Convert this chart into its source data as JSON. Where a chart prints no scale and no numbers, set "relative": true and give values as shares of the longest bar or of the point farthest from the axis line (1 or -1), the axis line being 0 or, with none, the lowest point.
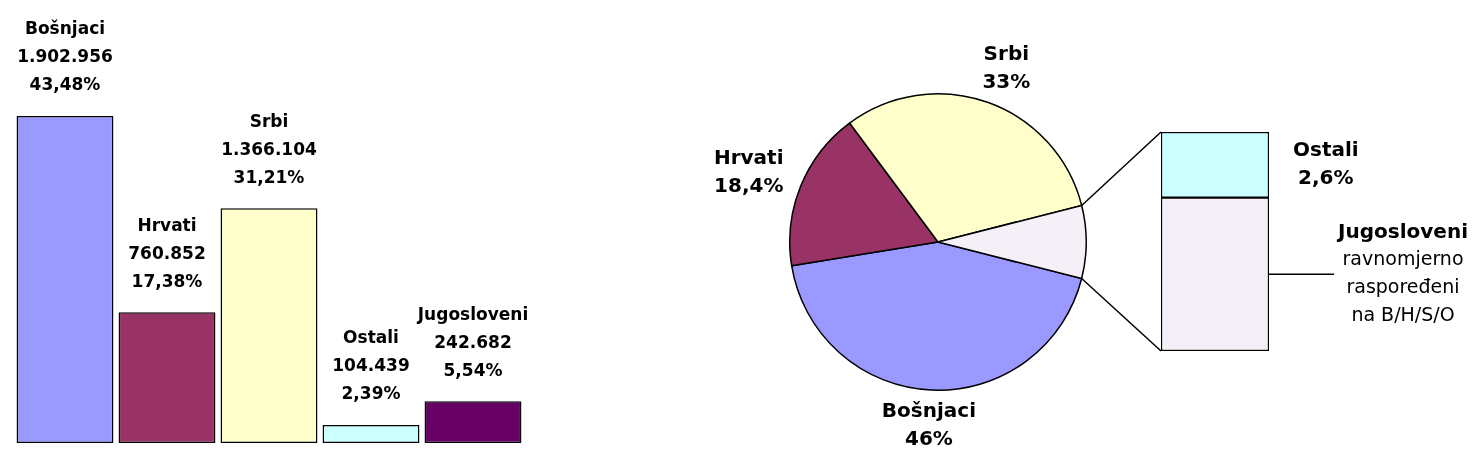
{
  "chart_data": [
    {
      "type": "bar",
      "categories": [
        null,
        null,
        null,
        null,
        null
      ],
      "values": [
        43.48,
        17.38,
        31.21,
        2.39,
        5.54
      ],
      "colors": [
        "#9999ff",
        "#993366",
        "#ffffcc",
        "#ccffff",
        "#660066"
      ],
      "value_labels": [
        "43,48%",
        "17,38%",
        "31,21%",
        "2,39%",
        "5,54%"
      ],
      "annotations": [
        "Bošnjaci",
        "1.902.956",
        "Hrvati",
        "760.852",
        "Srbi",
        "1.366.104",
        "Ostali",
        "104.439",
        "Jugosloveni",
        "242.682"
      ],
      "tick_labels": false
    },
    {
      "type": "pie",
      "categories": [
        "Bošnjaci",
        "Hrvati",
        "Srbi",
        null
      ],
      "values": [
        43.48,
        17.38,
        31.21,
        7.93
      ],
      "colors": [
        "#9999ff",
        "#993366",
        "#ffffcc",
        "#f5f0f7"
      ],
      "annotations": [
        "46%",
        "18,4%",
        "33%"
      ]
    },
    {
      "type": "bar",
      "stacked": true,
      "relative": true,
      "categories": [
        null
      ],
      "series": [
        {
          "name": "Jugosloveni",
          "color": "#f5f0f7",
          "values": [
            0.7
          ]
        },
        {
          "name": "Ostali",
          "color": "#ccffff",
          "values": [
            0.3
          ]
        }
      ],
      "annotations": [
        "ravnomjerno raspoređeni na B/H/S/O",
        "2,6%"
      ]
    }
  ]
}
